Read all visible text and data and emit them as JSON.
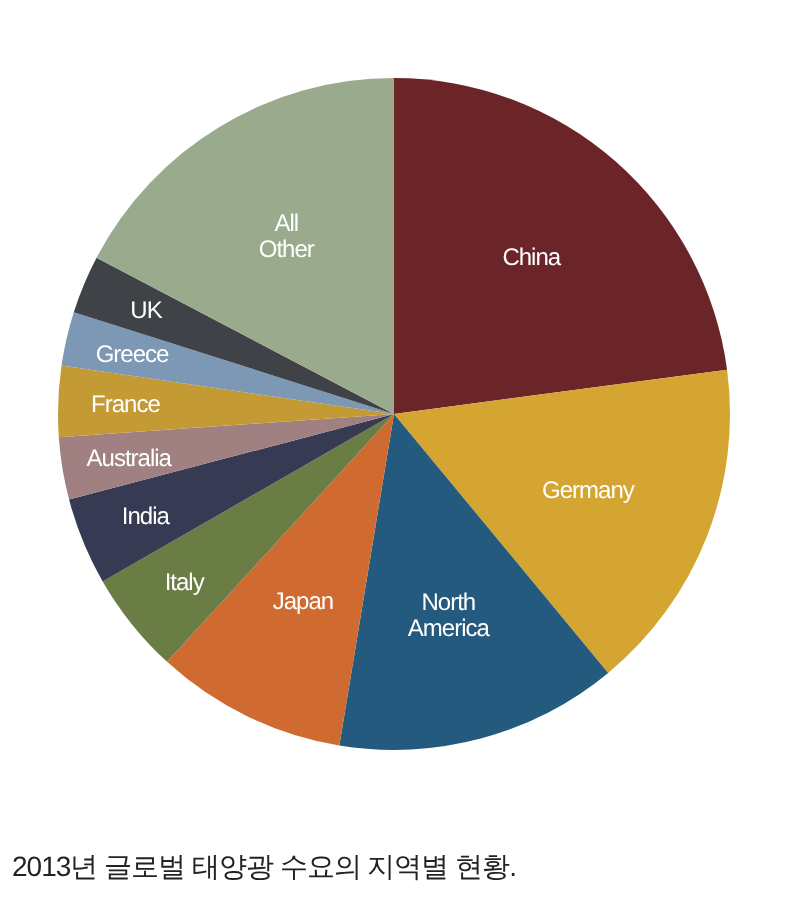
{
  "chart_data": {
    "type": "pie",
    "title": "2013년 글로벌 태양광 수요의 지역별 현황.",
    "categories": [
      "China",
      "Germany",
      "North America",
      "Japan",
      "Italy",
      "India",
      "Australia",
      "France",
      "Greece",
      "UK",
      "All Other"
    ],
    "values": [
      22.9,
      16.1,
      13.6,
      9.2,
      4.9,
      4.2,
      3.0,
      3.4,
      2.6,
      2.8,
      17.3
    ],
    "colors": [
      "#6b2428",
      "#d4a530",
      "#245a7e",
      "#cf6a30",
      "#6a7d44",
      "#363a52",
      "#a08080",
      "#c39a34",
      "#7d98b5",
      "#3f4246",
      "#9aaa8c"
    ]
  }
}
